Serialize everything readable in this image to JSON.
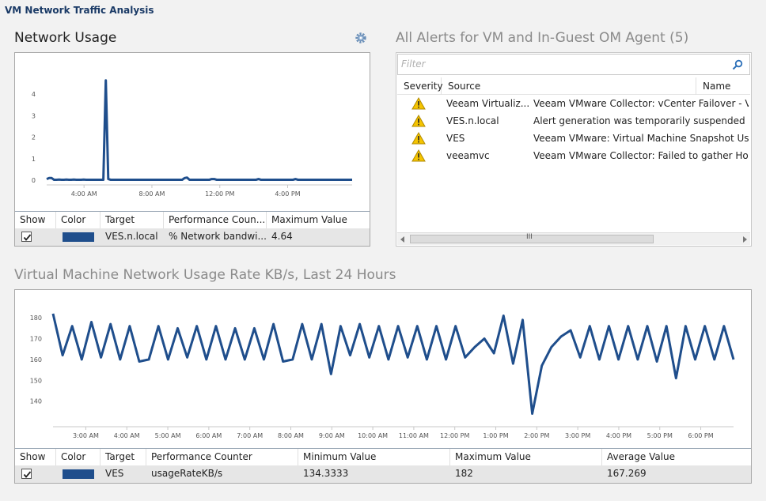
{
  "window_title": "VM Network Traffic Analysis",
  "network_usage": {
    "title": "Network Usage",
    "chart_data": {
      "type": "line",
      "y_ticks": [
        "0",
        "1",
        "2",
        "3",
        "4"
      ],
      "x_ticks": [
        "4:00 AM",
        "8:00 AM",
        "12:00 PM",
        "4:00 PM"
      ],
      "ylim": [
        0,
        5
      ],
      "grid": false,
      "series": [
        {
          "values": [
            0.05,
            0.1,
            0.1,
            0.02,
            0.02,
            0.03,
            0.02,
            0.02,
            0.03,
            0.02,
            0.02,
            0.03,
            0.02,
            0.02,
            0.02,
            0.03,
            0.02,
            0.02,
            0.02,
            0.02,
            0.02,
            0.02,
            0.02,
            0.02,
            4.64,
            0.05,
            0.02,
            0.02,
            0.02,
            0.02,
            0.02,
            0.02,
            0.02,
            0.02,
            0.02,
            0.02,
            0.02,
            0.02,
            0.02,
            0.02,
            0.02,
            0.02,
            0.02,
            0.02,
            0.02,
            0.02,
            0.02,
            0.02,
            0.02,
            0.02,
            0.02,
            0.02,
            0.02,
            0.02,
            0.02,
            0.02,
            0.1,
            0.12,
            0.02,
            0.02,
            0.02,
            0.02,
            0.02,
            0.02,
            0.02,
            0.02,
            0.02,
            0.05,
            0.05,
            0.02,
            0.02,
            0.02,
            0.02,
            0.02,
            0.02,
            0.02,
            0.02,
            0.02,
            0.02,
            0.02,
            0.02,
            0.02,
            0.02,
            0.02,
            0.02,
            0.02,
            0.05,
            0.02,
            0.02,
            0.02,
            0.02,
            0.02,
            0.02,
            0.02,
            0.02,
            0.02,
            0.02,
            0.02,
            0.02,
            0.02,
            0.02,
            0.05,
            0.02,
            0.02,
            0.02,
            0.02,
            0.02,
            0.02,
            0.02,
            0.02,
            0.02,
            0.02,
            0.02,
            0.02,
            0.02,
            0.02,
            0.02,
            0.02,
            0.02,
            0.02,
            0.02,
            0.02,
            0.02,
            0.02,
            0.02
          ],
          "x_start_hour": 1.8,
          "x_end_hour": 19.8,
          "color": "#1f4e8c"
        }
      ]
    },
    "grid": {
      "headers": [
        "Show",
        "Color",
        "Target",
        "Performance Coun...",
        "Maximum Value"
      ],
      "rows": [
        {
          "show": true,
          "color": "#1f4e8c",
          "target": "VES.n.local",
          "counter": "% Network bandwi...",
          "max": "4.64"
        }
      ]
    }
  },
  "alerts": {
    "title": "All Alerts for VM and In-Guest OM Agent (5)",
    "filter_placeholder": "Filter",
    "headers": [
      "Severity",
      "Source",
      "Name"
    ],
    "rows": [
      {
        "severity": "warning",
        "source": "Veeam Virtualiz...",
        "name": "Veeam VMware Collector: vCenter Failover - Veeam"
      },
      {
        "severity": "warning",
        "source": "VES.n.local",
        "name": "Alert generation was temporarily suspended due to"
      },
      {
        "severity": "warning",
        "source": "VES",
        "name": "Veeam VMware: Virtual Machine Snapshot Usage Ar"
      },
      {
        "severity": "warning",
        "source": "veeamvc",
        "name": "Veeam VMware Collector: Failed to gather Host hard"
      }
    ],
    "scroll_grip": "III"
  },
  "vm_usage": {
    "title": "Virtual Machine Network Usage Rate KB/s, Last 24 Hours",
    "chart_data": {
      "type": "line",
      "y_ticks": [
        "140",
        "150",
        "160",
        "170",
        "180"
      ],
      "x_ticks": [
        "3:00 AM",
        "4:00 AM",
        "5:00 AM",
        "6:00 AM",
        "7:00 AM",
        "8:00 AM",
        "9:00 AM",
        "10:00 AM",
        "11:00 AM",
        "12:00 PM",
        "1:00 PM",
        "2:00 PM",
        "3:00 PM",
        "4:00 PM",
        "5:00 PM",
        "6:00 PM"
      ],
      "ylim": [
        130,
        185
      ],
      "grid": false,
      "series": [
        {
          "x_start_hour": 2.2,
          "x_end_hour": 18.8,
          "color": "#1f4e8c",
          "values": [
            182,
            162,
            176,
            160,
            178,
            161,
            177,
            160,
            176,
            159,
            160,
            176,
            160,
            175,
            161,
            176,
            160,
            176,
            160,
            175,
            160,
            175,
            160,
            177,
            159,
            160,
            177,
            160,
            177,
            153,
            176,
            162,
            177,
            161,
            176,
            160,
            176,
            161,
            176,
            160,
            176,
            160,
            176,
            161,
            166,
            170,
            163,
            181,
            158,
            179,
            134,
            157,
            166,
            171,
            174,
            161,
            176,
            160,
            176,
            160,
            176,
            160,
            176,
            159,
            176,
            151,
            176,
            160,
            176,
            160,
            176,
            160
          ]
        }
      ]
    },
    "grid": {
      "headers": [
        "Show",
        "Color",
        "Target",
        "Performance Counter",
        "Minimum Value",
        "Maximum Value",
        "Average Value"
      ],
      "rows": [
        {
          "show": true,
          "color": "#1f4e8c",
          "target": "VES",
          "counter": "usageRateKB/s",
          "min": "134.3333",
          "max": "182",
          "avg": "167.269"
        }
      ]
    }
  }
}
